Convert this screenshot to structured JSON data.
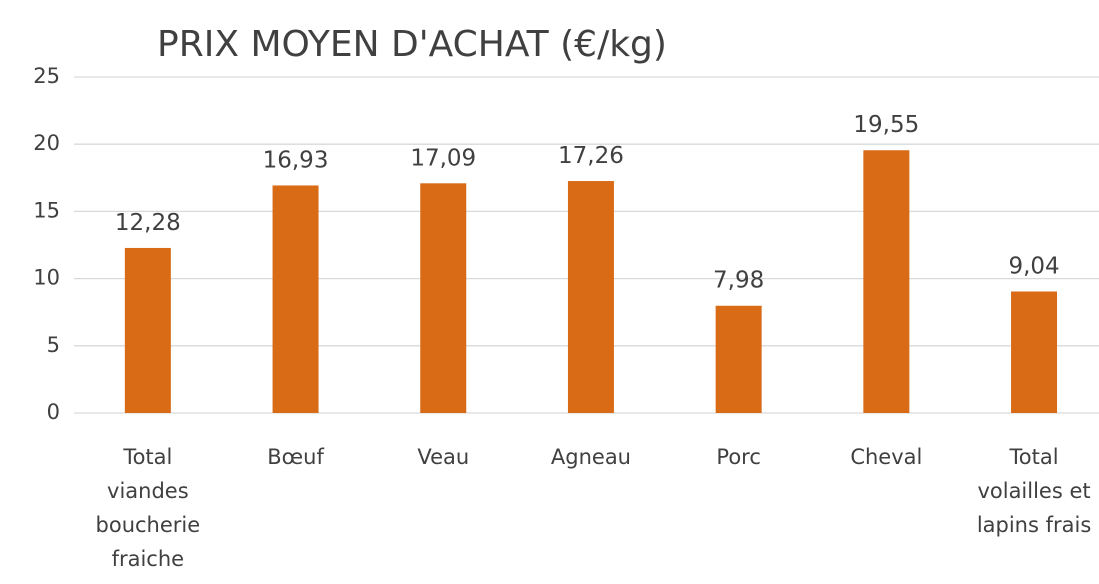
{
  "chart_data": {
    "type": "bar",
    "title": "PRIX MOYEN D'ACHAT (€/kg)",
    "categories": [
      "Total viandes boucherie fraiche",
      "Bœuf",
      "Veau",
      "Agneau",
      "Porc",
      "Cheval",
      "Total volailles et lapins frais"
    ],
    "values": [
      12.28,
      16.93,
      17.09,
      17.26,
      7.98,
      19.55,
      9.04
    ],
    "value_labels": [
      "12,28",
      "16,93",
      "17,09",
      "17,26",
      "7,98",
      "19,55",
      "9,04"
    ],
    "color": "#d96b17",
    "ylim": [
      0,
      25
    ],
    "yticks": [
      0,
      5,
      10,
      15,
      20,
      25
    ],
    "grid": true
  }
}
